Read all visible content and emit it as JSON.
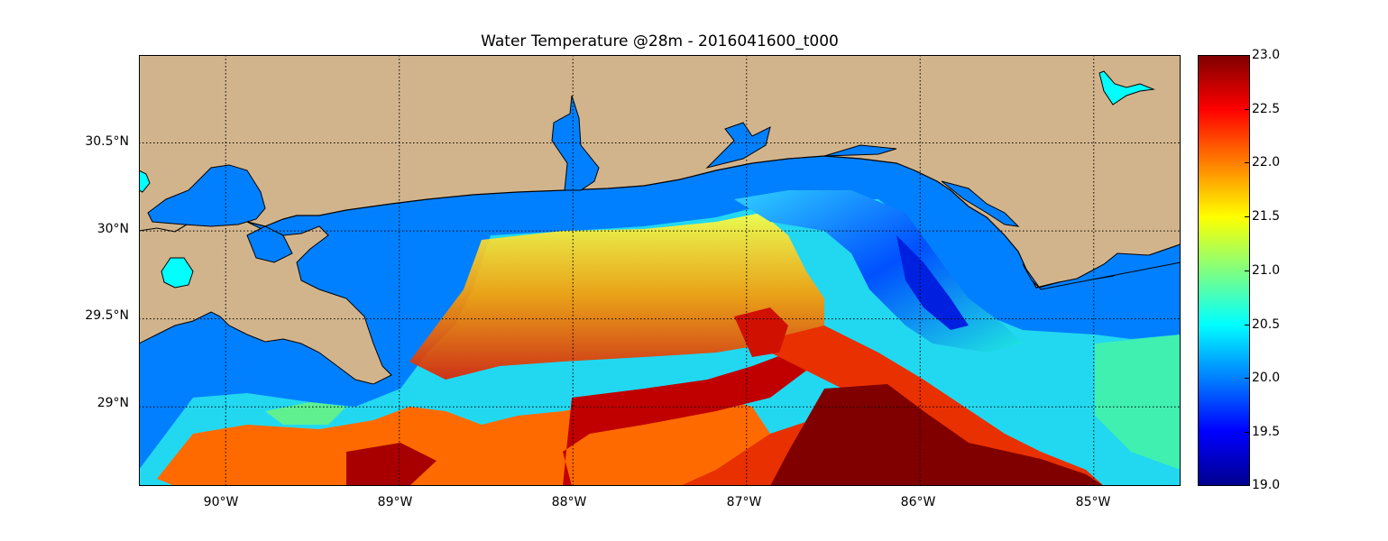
{
  "title": "Water Temperature @28m - 2016041600_t000",
  "map": {
    "lon_range": [
      -90.5,
      -84.5
    ],
    "lat_range": [
      28.55,
      31.0
    ],
    "lat_ticks": [
      {
        "value": 30.5,
        "label": "30.5°N"
      },
      {
        "value": 30.0,
        "label": "30°N"
      },
      {
        "value": 29.5,
        "label": "29.5°N"
      },
      {
        "value": 29.0,
        "label": "29°N"
      }
    ],
    "lon_ticks": [
      {
        "value": -90,
        "label": "90°W"
      },
      {
        "value": -89,
        "label": "89°W"
      },
      {
        "value": -88,
        "label": "88°W"
      },
      {
        "value": -87,
        "label": "87°W"
      },
      {
        "value": -86,
        "label": "86°W"
      },
      {
        "value": -85,
        "label": "85°W"
      }
    ],
    "colors": {
      "land": "#d2b48c",
      "water": "#0080ff",
      "lake": "#00ffff",
      "grid": "#000000"
    },
    "grid": true
  },
  "colorbar": {
    "min": 19.0,
    "max": 23.0,
    "colormap": "jet",
    "ticks": [
      "23.0",
      "22.5",
      "22.0",
      "21.5",
      "21.0",
      "20.5",
      "20.0",
      "19.5",
      "19.0"
    ]
  }
}
